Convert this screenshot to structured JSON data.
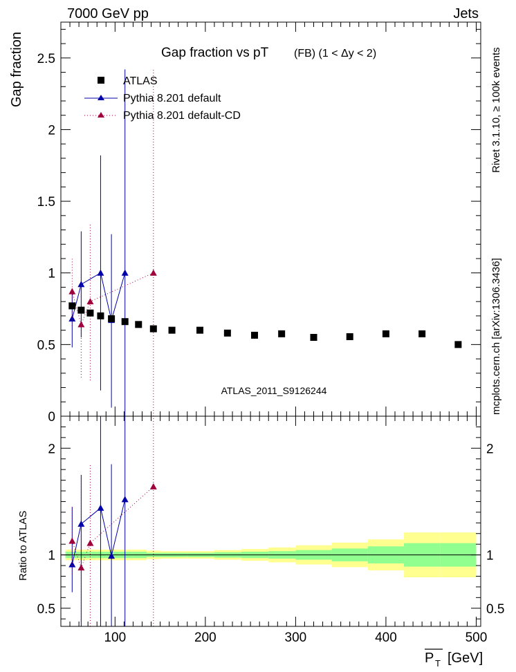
{
  "header": {
    "left": "7000 GeV pp",
    "right": "Jets",
    "side_top": "Rivet 3.1.10, ≥ 100k events",
    "side_bottom": "mcplots.cern.ch [arXiv:1306.3436]"
  },
  "chart_data": [
    {
      "type": "scatter",
      "title": "Gap fraction vs pT",
      "subtitle": "(FB) (1 < Δy < 2)",
      "ylabel": "Gap fraction",
      "xlabel": "P_T [GeV]",
      "watermark": "ATLAS_2011_S9126244",
      "xlim": [
        40,
        505
      ],
      "ylim": [
        0,
        2.75
      ],
      "yticks": [
        0,
        0.5,
        1,
        1.5,
        2,
        2.5
      ],
      "ytick_labels": [
        "0",
        "0.5",
        "1",
        "1.5",
        "2",
        "2.5"
      ],
      "legend_placement": "top-left",
      "series": [
        {
          "name": "ATLAS",
          "color": "#000000",
          "marker": "square",
          "x": [
            52.5,
            62.5,
            72.5,
            84,
            96,
            111,
            126,
            142.5,
            163,
            194,
            224.5,
            254.5,
            284.5,
            320,
            360,
            400,
            440,
            480
          ],
          "y": [
            0.77,
            0.74,
            0.72,
            0.7,
            0.68,
            0.66,
            0.64,
            0.61,
            0.6,
            0.6,
            0.58,
            0.565,
            0.575,
            0.55,
            0.555,
            0.575,
            0.575,
            0.5
          ]
        },
        {
          "name": "Pythia 8.201 default",
          "color": "#0000aa",
          "marker": "triangle",
          "line": "solid",
          "x": [
            52.5,
            62.5,
            84,
            96,
            111
          ],
          "y": [
            0.68,
            0.92,
            1.0,
            0.67,
            1.0
          ],
          "yerr_low": [
            0.48,
            0.55,
            0.18,
            0.06,
            0.0
          ],
          "yerr_high": [
            0.89,
            1.29,
            1.82,
            1.27,
            2.42
          ]
        },
        {
          "name": "Pythia 8.201 default-CD",
          "color": "#a0003c",
          "marker": "triangle",
          "line": "dotted",
          "x": [
            52.5,
            62.5,
            72.5,
            142.5
          ],
          "y": [
            0.87,
            0.64,
            0.8,
            1.0
          ],
          "yerr_low": [
            0.63,
            0.27,
            0.25,
            0.0
          ],
          "yerr_high": [
            1.1,
            1.0,
            1.34,
            2.42
          ]
        }
      ]
    },
    {
      "type": "scatter",
      "ylabel": "Ratio to ATLAS",
      "xlabel": "P_T [GeV]",
      "xlim": [
        40,
        505
      ],
      "ylim": [
        0.33,
        2.3
      ],
      "yticks": [
        0.5,
        1,
        2
      ],
      "ytick_labels": [
        "0.5",
        "1",
        "2"
      ],
      "xticks": [
        100,
        200,
        300,
        400,
        500
      ],
      "xtick_labels": [
        "100",
        "200",
        "300",
        "400",
        "500"
      ],
      "bands": {
        "edges": [
          45,
          60,
          70,
          80,
          90,
          105,
          120,
          135,
          150,
          180,
          210,
          240,
          270,
          300,
          340,
          380,
          420,
          460,
          500
        ],
        "inner_low": [
          0.97,
          0.97,
          0.97,
          0.97,
          0.97,
          0.97,
          0.97,
          0.98,
          0.98,
          0.98,
          0.975,
          0.97,
          0.965,
          0.955,
          0.94,
          0.92,
          0.89,
          0.89
        ],
        "inner_high": [
          1.03,
          1.03,
          1.03,
          1.03,
          1.03,
          1.03,
          1.03,
          1.02,
          1.02,
          1.02,
          1.025,
          1.03,
          1.035,
          1.045,
          1.06,
          1.08,
          1.11,
          1.11
        ],
        "outer_low": [
          0.95,
          0.95,
          0.95,
          0.95,
          0.95,
          0.95,
          0.95,
          0.96,
          0.965,
          0.965,
          0.955,
          0.945,
          0.93,
          0.91,
          0.885,
          0.855,
          0.79,
          0.79
        ],
        "outer_high": [
          1.05,
          1.05,
          1.05,
          1.05,
          1.05,
          1.05,
          1.05,
          1.04,
          1.035,
          1.035,
          1.045,
          1.055,
          1.07,
          1.09,
          1.115,
          1.145,
          1.21,
          1.21
        ],
        "inner_color": "#90ff90",
        "outer_color": "#ffff90"
      },
      "series": [
        {
          "name": "Pythia 8.201 default",
          "color": "#0000aa",
          "marker": "triangle",
          "line": "solid",
          "x": [
            52.5,
            62.5,
            84,
            96,
            111
          ],
          "y": [
            0.91,
            1.29,
            1.44,
            0.99,
            1.52
          ],
          "yerr_low": [
            0.65,
            0.33,
            0.0,
            0.0,
            0.0
          ],
          "yerr_high": [
            1.45,
            1.75,
            2.3,
            1.85,
            2.3
          ]
        },
        {
          "name": "Pythia 8.201 default-CD",
          "color": "#a0003c",
          "marker": "triangle",
          "line": "dotted",
          "x": [
            52.5,
            62.5,
            72.5,
            142.5
          ],
          "y": [
            1.13,
            0.88,
            1.11,
            1.64
          ],
          "yerr_low": [
            0.82,
            0.39,
            0.0,
            0.0
          ],
          "yerr_high": [
            1.45,
            1.75,
            1.85,
            2.3
          ]
        }
      ]
    }
  ]
}
